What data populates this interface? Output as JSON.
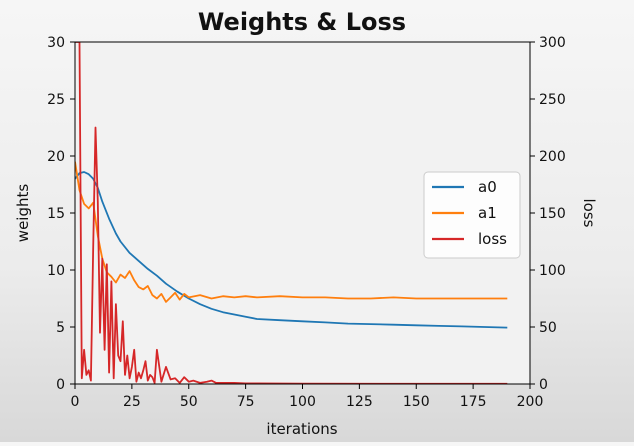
{
  "chart_data": {
    "type": "line",
    "title": "Weights & Loss",
    "xlabel": "iterations",
    "ylabel_left": "weights",
    "ylabel_right": "loss",
    "xlim": [
      0,
      200
    ],
    "ylim_left": [
      0,
      30
    ],
    "ylim_right": [
      0,
      300
    ],
    "xticks": [
      "0",
      "25",
      "50",
      "75",
      "100",
      "125",
      "150",
      "175",
      "200"
    ],
    "yticks_left": [
      "0",
      "5",
      "10",
      "15",
      "20",
      "25",
      "30"
    ],
    "yticks_right": [
      "0",
      "50",
      "100",
      "150",
      "200",
      "250",
      "300"
    ],
    "grid": false,
    "legend_position": "center-right",
    "series": [
      {
        "name": "a0",
        "axis": "left",
        "color": "#1f77b4",
        "x": [
          0,
          2,
          4,
          6,
          8,
          10,
          12,
          15,
          18,
          20,
          24,
          28,
          32,
          36,
          40,
          45,
          50,
          55,
          60,
          65,
          70,
          75,
          80,
          90,
          100,
          110,
          120,
          130,
          140,
          150,
          160,
          170,
          180,
          190
        ],
        "y": [
          18.0,
          18.5,
          18.6,
          18.4,
          18.0,
          17.2,
          16.0,
          14.5,
          13.2,
          12.5,
          11.5,
          10.8,
          10.1,
          9.5,
          8.8,
          8.1,
          7.5,
          7.0,
          6.6,
          6.3,
          6.1,
          5.9,
          5.7,
          5.6,
          5.5,
          5.4,
          5.3,
          5.25,
          5.2,
          5.15,
          5.1,
          5.05,
          5.0,
          4.95
        ]
      },
      {
        "name": "a1",
        "axis": "left",
        "color": "#ff7f0e",
        "x": [
          0,
          2,
          4,
          6,
          8,
          10,
          12,
          14,
          16,
          18,
          20,
          22,
          24,
          26,
          28,
          30,
          32,
          34,
          36,
          38,
          40,
          42,
          44,
          46,
          48,
          50,
          55,
          60,
          65,
          70,
          75,
          80,
          90,
          100,
          110,
          120,
          130,
          140,
          150,
          160,
          170,
          180,
          190
        ],
        "y": [
          19.5,
          17.0,
          15.8,
          15.4,
          15.9,
          13.0,
          11.0,
          9.8,
          9.4,
          8.9,
          9.6,
          9.3,
          9.9,
          9.1,
          8.5,
          8.3,
          8.6,
          7.8,
          7.5,
          7.9,
          7.2,
          7.6,
          8.0,
          7.4,
          7.9,
          7.6,
          7.8,
          7.5,
          7.7,
          7.6,
          7.7,
          7.6,
          7.7,
          7.6,
          7.6,
          7.5,
          7.5,
          7.6,
          7.5,
          7.5,
          7.5,
          7.5,
          7.5
        ]
      },
      {
        "name": "loss",
        "axis": "right",
        "color": "#d62728",
        "x": [
          0,
          2,
          3,
          4,
          5,
          6,
          7,
          8,
          9,
          10,
          11,
          12,
          13,
          14,
          15,
          16,
          17,
          18,
          19,
          20,
          21,
          22,
          23,
          24,
          25,
          26,
          27,
          28,
          29,
          30,
          31,
          32,
          33,
          34,
          35,
          36,
          38,
          40,
          42,
          44,
          46,
          48,
          50,
          52,
          55,
          58,
          60,
          62,
          65,
          70,
          75,
          80,
          100,
          150,
          190
        ],
        "y": [
          300,
          300,
          5,
          30,
          8,
          12,
          3,
          120,
          225,
          160,
          45,
          110,
          30,
          105,
          10,
          90,
          5,
          70,
          25,
          20,
          55,
          8,
          25,
          5,
          15,
          30,
          2,
          10,
          5,
          12,
          20,
          3,
          8,
          6,
          1,
          30,
          2,
          15,
          4,
          5,
          1,
          6,
          2,
          3,
          1,
          2,
          3,
          1,
          1,
          1,
          0.5,
          0.5,
          0.3,
          0.2,
          0.2
        ]
      }
    ]
  }
}
